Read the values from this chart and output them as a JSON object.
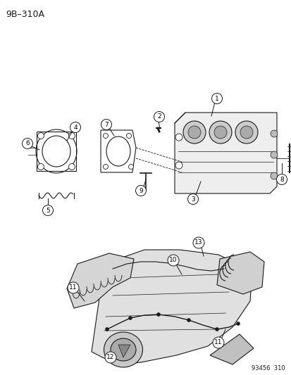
{
  "title": "9B–310A",
  "footer": "93456  310",
  "bg_color": "#ffffff",
  "fg_color": "#1a1a1a",
  "figsize": [
    4.14,
    5.33
  ],
  "dpi": 100
}
